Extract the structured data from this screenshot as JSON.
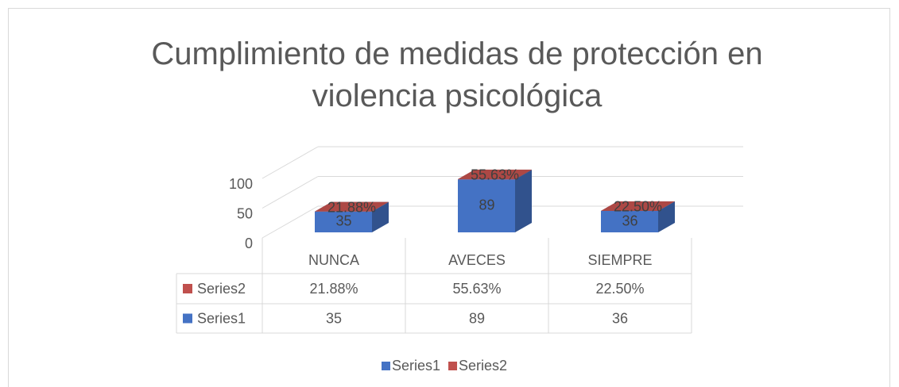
{
  "chart_data": {
    "type": "bar3d_stacked",
    "title": "Cumplimiento de medidas de protección en violencia psicológica",
    "categories": [
      "NUNCA",
      "AVECES",
      "SIEMPRE"
    ],
    "series": [
      {
        "name": "Series1",
        "color": "#4472c4",
        "values": [
          35,
          89,
          36
        ]
      },
      {
        "name": "Series2",
        "color": "#c0504d",
        "values": [
          0.2188,
          0.5563,
          0.225
        ],
        "value_labels": [
          "21.88%",
          "55.63%",
          "22.50%"
        ]
      }
    ],
    "ylim": [
      0,
      100
    ],
    "yticks": [
      0,
      50,
      100
    ],
    "grid": true,
    "legend": "bottom",
    "data_table": true
  }
}
